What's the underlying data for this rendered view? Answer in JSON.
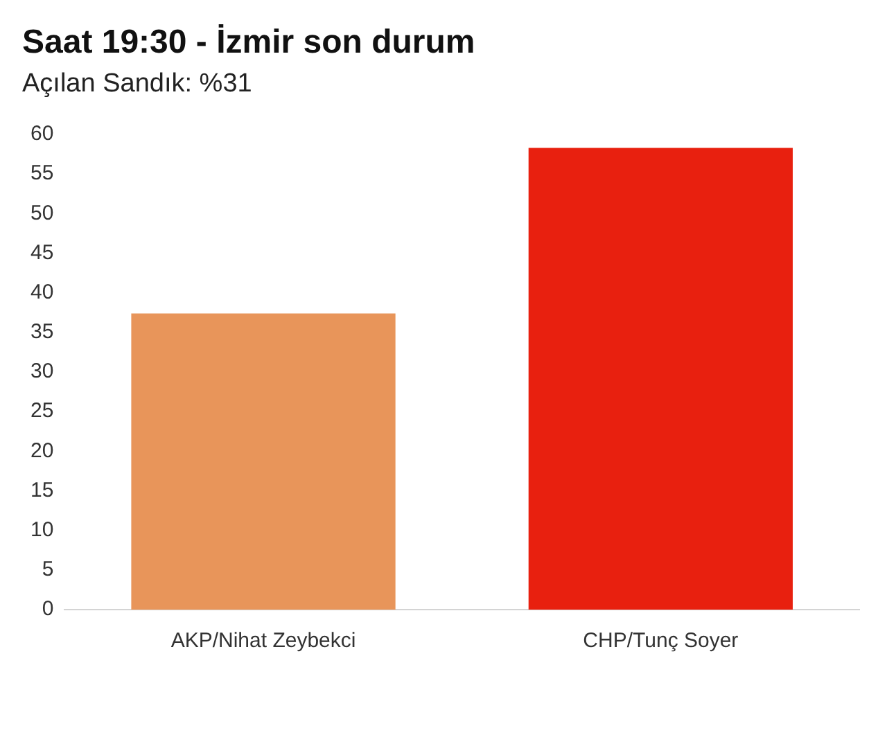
{
  "chart_data": {
    "type": "bar",
    "title": "Saat 19:30 - İzmir son durum",
    "subtitle": "Açılan Sandık: %31",
    "categories": [
      "AKP/Nihat Zeybekci",
      "CHP/Tunç Soyer"
    ],
    "values": [
      37.4,
      58.3
    ],
    "colors": [
      "#e8955a",
      "#e8200f"
    ],
    "ylim": [
      0,
      60
    ],
    "yticks": [
      0,
      5,
      10,
      15,
      20,
      25,
      30,
      35,
      40,
      45,
      50,
      55,
      60
    ]
  }
}
